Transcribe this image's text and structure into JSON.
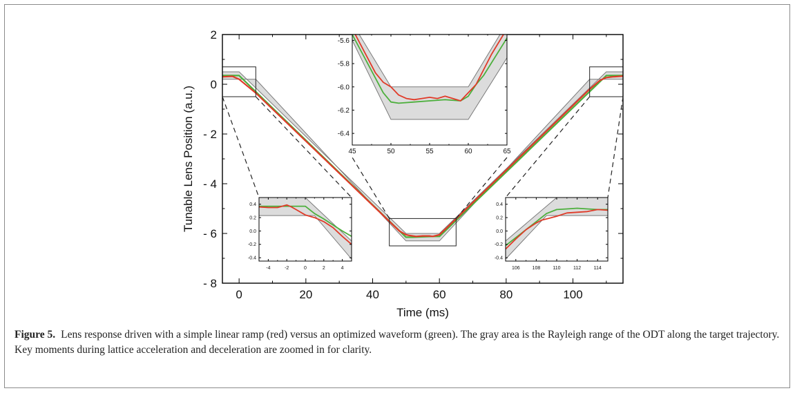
{
  "figure": {
    "label": "Figure 5.",
    "caption": "Lens response driven with a simple linear ramp (red) versus an optimized waveform (green). The gray area is the Rayleigh range of the ODT along the target trajectory. Key moments during lattice acceleration and deceleration are zoomed in for clarity."
  },
  "colors": {
    "linear_ramp": "#e03a28",
    "optimized": "#4caf3c",
    "rayleigh_band": "#dcdcdc",
    "band_edge": "#7a7a7a",
    "axis": "#000000"
  },
  "chart_data": [
    {
      "id": "main",
      "type": "line",
      "xlabel": "Time (ms)",
      "ylabel": "Tunable Lens Position (a.u.)",
      "xlim": [
        -5,
        115
      ],
      "ylim": [
        -8,
        2
      ],
      "xticks": [
        0,
        20,
        40,
        60,
        80,
        100
      ],
      "xtick_labels": [
        "0",
        "20",
        "40",
        "60",
        "80",
        "100"
      ],
      "yticks": [
        2,
        0,
        -2,
        -4,
        -6,
        -8
      ],
      "ytick_labels": [
        "2",
        "0",
        "- 2",
        "- 4",
        "- 6",
        "- 8"
      ],
      "band": {
        "upper": [
          [
            -5,
            0.5
          ],
          [
            0,
            0.5
          ],
          [
            50,
            -6.0
          ],
          [
            60,
            -6.0
          ],
          [
            110,
            0.5
          ],
          [
            115,
            0.5
          ]
        ],
        "lower": [
          [
            -5,
            0.2
          ],
          [
            5,
            0.2
          ],
          [
            50,
            -6.3
          ],
          [
            60,
            -6.3
          ],
          [
            105,
            0.2
          ],
          [
            115,
            0.2
          ]
        ]
      },
      "series": [
        {
          "color": "#4caf3c",
          "x": [
            -5,
            0,
            50,
            52,
            58,
            60,
            110,
            115
          ],
          "y": [
            0.35,
            0.35,
            -6.15,
            -6.15,
            -6.12,
            -6.12,
            0.35,
            0.35
          ]
        },
        {
          "color": "#e03a28",
          "x": [
            -5,
            -2,
            0,
            5,
            48,
            50,
            51,
            53,
            55,
            57,
            58,
            60,
            62,
            105,
            108,
            110,
            112,
            115
          ],
          "y": [
            0.3,
            0.32,
            0.2,
            -0.35,
            -5.9,
            -6.05,
            -6.08,
            -6.12,
            -6.1,
            -6.1,
            -6.12,
            -6.05,
            -5.8,
            -0.2,
            0.15,
            0.27,
            0.3,
            0.33
          ]
        }
      ],
      "zoom_boxes": [
        {
          "x": [
            -5,
            5
          ],
          "y": [
            -0.5,
            0.7
          ]
        },
        {
          "x": [
            45,
            65
          ],
          "y": [
            -6.5,
            -5.4
          ]
        },
        {
          "x": [
            105,
            115
          ],
          "y": [
            -0.5,
            0.7
          ]
        }
      ]
    },
    {
      "id": "inset-middle",
      "type": "line",
      "xlim": [
        45,
        65
      ],
      "ylim": [
        -6.5,
        -5.55
      ],
      "xticks": [
        45,
        50,
        55,
        60,
        65
      ],
      "xtick_labels": [
        "45",
        "50",
        "55",
        "60",
        "65"
      ],
      "yticks": [
        -5.6,
        -5.8,
        -6.0,
        -6.2,
        -6.4
      ],
      "ytick_labels": [
        "-5.6",
        "-5.8",
        "-6.0",
        "-6.2",
        "-6.4"
      ],
      "band": {
        "upper": [
          [
            45,
            -5.45
          ],
          [
            50,
            -6.0
          ],
          [
            60,
            -6.0
          ],
          [
            65,
            -5.45
          ]
        ],
        "lower": [
          [
            45,
            -5.6
          ],
          [
            50,
            -6.28
          ],
          [
            60,
            -6.28
          ],
          [
            65,
            -5.75
          ]
        ]
      },
      "series": [
        {
          "color": "#4caf3c",
          "x": [
            45,
            49,
            50,
            51,
            53,
            55,
            57,
            59,
            60,
            61,
            62,
            65
          ],
          "y": [
            -5.55,
            -6.05,
            -6.13,
            -6.14,
            -6.13,
            -6.12,
            -6.11,
            -6.12,
            -6.08,
            -5.98,
            -5.9,
            -5.58
          ]
        },
        {
          "color": "#e03a28",
          "x": [
            45,
            48,
            49,
            50,
            51,
            52,
            53,
            54,
            55,
            56,
            57,
            58,
            59,
            60,
            61,
            62,
            63,
            65
          ],
          "y": [
            -5.5,
            -5.88,
            -5.96,
            -6.0,
            -6.07,
            -6.1,
            -6.11,
            -6.1,
            -6.09,
            -6.1,
            -6.08,
            -6.1,
            -6.12,
            -6.05,
            -5.98,
            -5.85,
            -5.72,
            -5.5
          ]
        }
      ]
    },
    {
      "id": "inset-left",
      "type": "line",
      "xlim": [
        -5,
        5
      ],
      "ylim": [
        -0.45,
        0.5
      ],
      "xticks": [
        -4,
        -2,
        0,
        2,
        4
      ],
      "xtick_labels": [
        "-4",
        "-2",
        "0",
        "2",
        "4"
      ],
      "yticks": [
        0.4,
        0.2,
        0.0,
        -0.2,
        -0.4
      ],
      "ytick_labels": [
        "0.4",
        "0.2",
        "0.0",
        "-0.2",
        "-0.4"
      ],
      "band": {
        "upper": [
          [
            -5,
            0.5
          ],
          [
            0,
            0.5
          ],
          [
            5,
            -0.15
          ]
        ],
        "lower": [
          [
            -5,
            0.23
          ],
          [
            1,
            0.23
          ],
          [
            5,
            -0.42
          ]
        ]
      },
      "series": [
        {
          "color": "#4caf3c",
          "x": [
            -5,
            -3,
            -1,
            0,
            1,
            2,
            3,
            4,
            5
          ],
          "y": [
            0.37,
            0.37,
            0.37,
            0.37,
            0.26,
            0.18,
            0.09,
            0.0,
            -0.08
          ]
        },
        {
          "color": "#e03a28",
          "x": [
            -5,
            -4,
            -3,
            -2.5,
            -2,
            -1.5,
            -1,
            0,
            1,
            2,
            3,
            4,
            5
          ],
          "y": [
            0.36,
            0.35,
            0.35,
            0.37,
            0.39,
            0.36,
            0.32,
            0.24,
            0.2,
            0.14,
            0.05,
            -0.08,
            -0.2
          ]
        }
      ]
    },
    {
      "id": "inset-right",
      "type": "line",
      "xlim": [
        105,
        115
      ],
      "ylim": [
        -0.45,
        0.5
      ],
      "xticks": [
        106,
        108,
        110,
        112,
        114
      ],
      "xtick_labels": [
        "106",
        "108",
        "110",
        "112",
        "114"
      ],
      "yticks": [
        0.4,
        0.2,
        0.0,
        -0.2,
        -0.4
      ],
      "ytick_labels": [
        "0.4",
        "0.2",
        "0.0",
        "-0.2",
        "-0.4"
      ],
      "band": {
        "upper": [
          [
            105,
            -0.15
          ],
          [
            110,
            0.5
          ],
          [
            115,
            0.5
          ]
        ],
        "lower": [
          [
            105,
            -0.42
          ],
          [
            109,
            0.23
          ],
          [
            115,
            0.23
          ]
        ]
      },
      "series": [
        {
          "color": "#4caf3c",
          "x": [
            105,
            106,
            107,
            108,
            109,
            110,
            111,
            112,
            113,
            114,
            115
          ],
          "y": [
            -0.22,
            -0.1,
            0.02,
            0.14,
            0.26,
            0.32,
            0.33,
            0.34,
            0.33,
            0.32,
            0.32
          ]
        },
        {
          "color": "#e03a28",
          "x": [
            105,
            106,
            107,
            108,
            108.5,
            109,
            110,
            111,
            112,
            113,
            114,
            115
          ],
          "y": [
            -0.27,
            -0.12,
            0.02,
            0.12,
            0.16,
            0.18,
            0.22,
            0.27,
            0.28,
            0.29,
            0.32,
            0.31
          ]
        }
      ]
    }
  ]
}
